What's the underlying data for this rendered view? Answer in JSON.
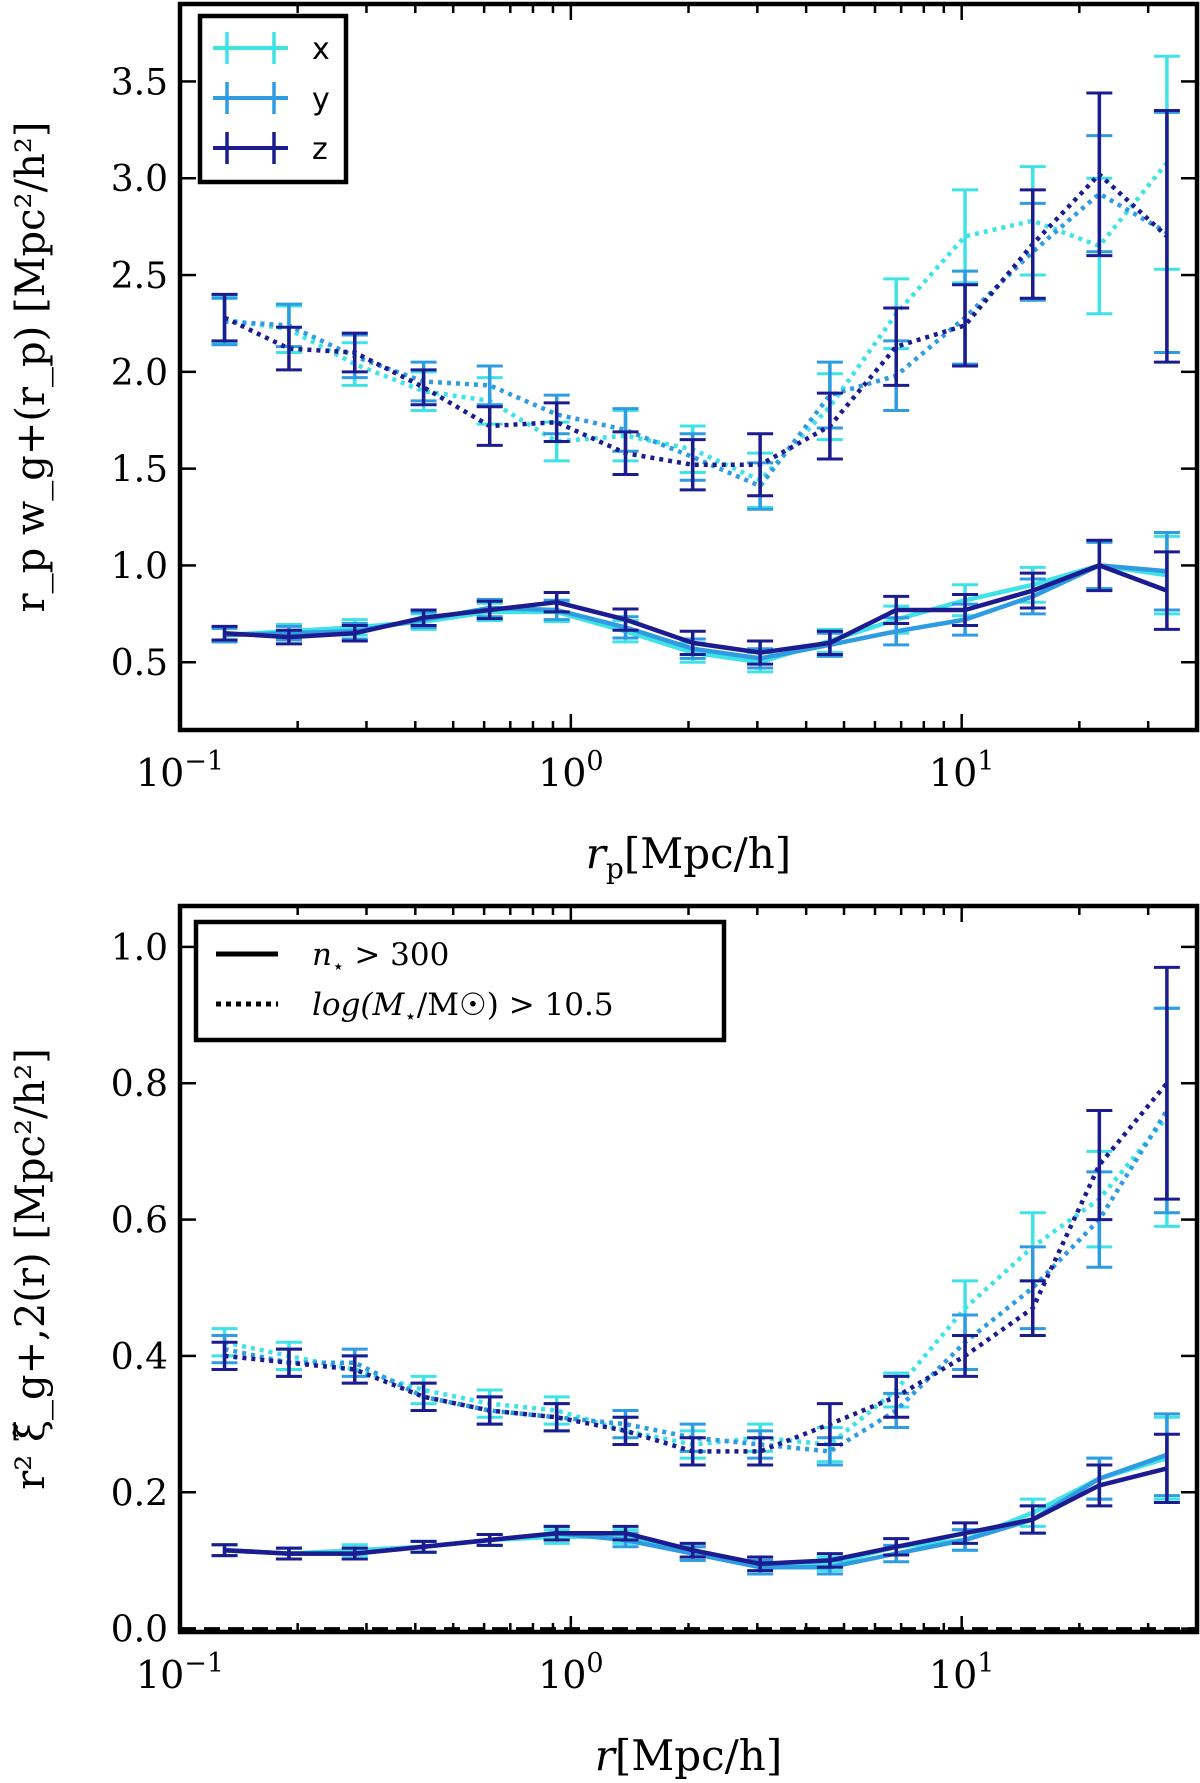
{
  "chart_data": [
    {
      "type": "line",
      "panel": "top",
      "xscale": "log",
      "xlim": [
        0.1,
        40
      ],
      "ylim": [
        0.15,
        3.9
      ],
      "xlabel_var": "r",
      "xlabel_sub": "p",
      "xlabel_unit": "[Mpc/h]",
      "ylabel": "r_p w_g+(r_p) [Mpc²/h²]",
      "x_ticks": [
        {
          "value": 0.1,
          "base": "10",
          "exp": "−1"
        },
        {
          "value": 1,
          "base": "10",
          "exp": "0"
        },
        {
          "value": 10,
          "base": "10",
          "exp": "1"
        }
      ],
      "y_ticks": [
        0.5,
        1.0,
        1.5,
        2.0,
        2.5,
        3.0,
        3.5
      ],
      "y_tick_labels": [
        "0.5",
        "1.0",
        "1.5",
        "2.0",
        "2.5",
        "3.0",
        "3.5"
      ],
      "x": [
        0.13,
        0.19,
        0.28,
        0.42,
        0.62,
        0.92,
        1.38,
        2.05,
        3.05,
        4.6,
        6.8,
        10.2,
        15.2,
        22.5,
        33.5
      ],
      "legend": {
        "placement": "top-left",
        "entries": [
          "x",
          "y",
          "z"
        ]
      },
      "series": [
        {
          "name": "x",
          "sample": "log(M*/M☉) > 10.5",
          "style": "dotted",
          "color": "#3fe3e6",
          "values": [
            2.27,
            2.22,
            2.04,
            1.9,
            1.85,
            1.64,
            1.67,
            1.6,
            1.44,
            1.82,
            2.3,
            2.7,
            2.78,
            2.65,
            3.08
          ],
          "errors": [
            0.12,
            0.12,
            0.11,
            0.1,
            0.12,
            0.1,
            0.13,
            0.12,
            0.14,
            0.17,
            0.18,
            0.24,
            0.28,
            0.35,
            0.55
          ]
        },
        {
          "name": "y",
          "sample": "log(M*/M☉) > 10.5",
          "style": "dotted",
          "color": "#2f9be0",
          "values": [
            2.26,
            2.24,
            2.08,
            1.95,
            1.93,
            1.78,
            1.7,
            1.56,
            1.41,
            1.88,
            1.98,
            2.28,
            2.62,
            2.92,
            2.72
          ],
          "errors": [
            0.12,
            0.11,
            0.11,
            0.1,
            0.1,
            0.1,
            0.11,
            0.12,
            0.12,
            0.17,
            0.18,
            0.24,
            0.25,
            0.3,
            0.62
          ]
        },
        {
          "name": "z",
          "sample": "log(M*/M☉) > 10.5",
          "style": "dotted",
          "color": "#1c1c90",
          "values": [
            2.28,
            2.12,
            2.1,
            1.92,
            1.72,
            1.74,
            1.58,
            1.52,
            1.52,
            1.72,
            2.13,
            2.24,
            2.66,
            3.02,
            2.7
          ],
          "errors": [
            0.12,
            0.11,
            0.1,
            0.09,
            0.1,
            0.1,
            0.11,
            0.13,
            0.16,
            0.17,
            0.2,
            0.21,
            0.28,
            0.42,
            0.65
          ]
        },
        {
          "name": "x",
          "sample": "n* > 300",
          "style": "solid",
          "color": "#3fe3e6",
          "values": [
            0.64,
            0.66,
            0.68,
            0.71,
            0.76,
            0.76,
            0.66,
            0.55,
            0.5,
            0.61,
            0.72,
            0.82,
            0.9,
            1.0,
            0.95
          ],
          "errors": [
            0.035,
            0.035,
            0.04,
            0.04,
            0.045,
            0.05,
            0.055,
            0.05,
            0.05,
            0.06,
            0.07,
            0.08,
            0.09,
            0.12,
            0.2
          ]
        },
        {
          "name": "y",
          "sample": "n* > 300",
          "style": "solid",
          "color": "#2f9be0",
          "values": [
            0.64,
            0.65,
            0.66,
            0.72,
            0.78,
            0.77,
            0.68,
            0.57,
            0.52,
            0.59,
            0.66,
            0.72,
            0.84,
            1.0,
            0.97
          ],
          "errors": [
            0.035,
            0.035,
            0.04,
            0.04,
            0.045,
            0.05,
            0.055,
            0.05,
            0.05,
            0.06,
            0.07,
            0.08,
            0.09,
            0.12,
            0.2
          ]
        },
        {
          "name": "z",
          "sample": "n* > 300",
          "style": "solid",
          "color": "#1c1c90",
          "values": [
            0.65,
            0.63,
            0.65,
            0.73,
            0.77,
            0.81,
            0.72,
            0.6,
            0.55,
            0.6,
            0.77,
            0.77,
            0.87,
            1.0,
            0.87
          ],
          "errors": [
            0.035,
            0.035,
            0.04,
            0.04,
            0.045,
            0.05,
            0.055,
            0.06,
            0.06,
            0.06,
            0.07,
            0.08,
            0.09,
            0.13,
            0.2
          ]
        }
      ]
    },
    {
      "type": "line",
      "panel": "bottom",
      "xscale": "log",
      "xlim": [
        0.1,
        40
      ],
      "ylim": [
        -0.005,
        1.06
      ],
      "xlabel_var": "r",
      "xlabel_sub": "",
      "xlabel_unit": "[Mpc/h]",
      "ylabel": "r² ξ̃_g+,2(r) [Mpc²/h²]",
      "x_ticks": [
        {
          "value": 0.1,
          "base": "10",
          "exp": "−1"
        },
        {
          "value": 1,
          "base": "10",
          "exp": "0"
        },
        {
          "value": 10,
          "base": "10",
          "exp": "1"
        }
      ],
      "y_ticks": [
        0.0,
        0.2,
        0.4,
        0.6,
        0.8,
        1.0
      ],
      "y_tick_labels": [
        "0.0",
        "0.2",
        "0.4",
        "0.6",
        "0.8",
        "1.0"
      ],
      "x": [
        0.13,
        0.19,
        0.28,
        0.42,
        0.62,
        0.92,
        1.38,
        2.05,
        3.05,
        4.6,
        6.8,
        10.2,
        15.2,
        22.5,
        33.5
      ],
      "zero_line": 0.0,
      "legend": {
        "placement": "top-left",
        "entries": [
          {
            "style": "solid",
            "label_main": "n",
            "label_sub": "⋆",
            "label_rest": " > 300"
          },
          {
            "style": "dotted",
            "label_main": "log(M",
            "label_sub": "⋆",
            "label_rest": "/M☉) > 10.5"
          }
        ]
      },
      "series": [
        {
          "name": "x",
          "sample": "log(M*/M☉) > 10.5",
          "style": "dotted",
          "color": "#3fe3e6",
          "values": [
            0.42,
            0.4,
            0.38,
            0.35,
            0.33,
            0.32,
            0.29,
            0.27,
            0.28,
            0.27,
            0.35,
            0.47,
            0.56,
            0.63,
            0.75
          ],
          "errors": [
            0.02,
            0.02,
            0.02,
            0.02,
            0.02,
            0.02,
            0.02,
            0.02,
            0.02,
            0.025,
            0.025,
            0.04,
            0.05,
            0.07,
            0.16
          ]
        },
        {
          "name": "y",
          "sample": "log(M*/M☉) > 10.5",
          "style": "dotted",
          "color": "#2f9be0",
          "values": [
            0.41,
            0.39,
            0.39,
            0.34,
            0.32,
            0.31,
            0.3,
            0.28,
            0.27,
            0.26,
            0.32,
            0.42,
            0.5,
            0.6,
            0.76
          ],
          "errors": [
            0.02,
            0.02,
            0.02,
            0.02,
            0.02,
            0.02,
            0.02,
            0.02,
            0.02,
            0.02,
            0.025,
            0.04,
            0.06,
            0.07,
            0.15
          ]
        },
        {
          "name": "z",
          "sample": "log(M*/M☉) > 10.5",
          "style": "dotted",
          "color": "#1c1c90",
          "values": [
            0.4,
            0.39,
            0.38,
            0.34,
            0.32,
            0.31,
            0.29,
            0.26,
            0.26,
            0.3,
            0.34,
            0.4,
            0.47,
            0.68,
            0.8
          ],
          "errors": [
            0.02,
            0.02,
            0.02,
            0.02,
            0.02,
            0.02,
            0.02,
            0.02,
            0.02,
            0.03,
            0.03,
            0.03,
            0.04,
            0.08,
            0.17
          ]
        },
        {
          "name": "x",
          "sample": "n* > 300",
          "style": "solid",
          "color": "#3fe3e6",
          "values": [
            0.115,
            0.11,
            0.115,
            0.12,
            0.13,
            0.135,
            0.135,
            0.11,
            0.09,
            0.095,
            0.12,
            0.13,
            0.17,
            0.22,
            0.25
          ],
          "errors": [
            0.008,
            0.008,
            0.008,
            0.008,
            0.008,
            0.01,
            0.01,
            0.01,
            0.01,
            0.01,
            0.012,
            0.015,
            0.02,
            0.03,
            0.06
          ]
        },
        {
          "name": "y",
          "sample": "n* > 300",
          "style": "solid",
          "color": "#2f9be0",
          "values": [
            0.115,
            0.11,
            0.11,
            0.12,
            0.13,
            0.14,
            0.13,
            0.11,
            0.09,
            0.09,
            0.11,
            0.13,
            0.16,
            0.22,
            0.255
          ],
          "errors": [
            0.008,
            0.008,
            0.008,
            0.008,
            0.008,
            0.01,
            0.01,
            0.01,
            0.01,
            0.01,
            0.012,
            0.015,
            0.02,
            0.03,
            0.06
          ]
        },
        {
          "name": "z",
          "sample": "n* > 300",
          "style": "solid",
          "color": "#1c1c90",
          "values": [
            0.115,
            0.11,
            0.11,
            0.12,
            0.13,
            0.14,
            0.14,
            0.115,
            0.095,
            0.1,
            0.12,
            0.14,
            0.16,
            0.21,
            0.235
          ],
          "errors": [
            0.008,
            0.008,
            0.008,
            0.008,
            0.008,
            0.01,
            0.01,
            0.01,
            0.01,
            0.01,
            0.012,
            0.015,
            0.02,
            0.03,
            0.05
          ]
        }
      ]
    }
  ]
}
